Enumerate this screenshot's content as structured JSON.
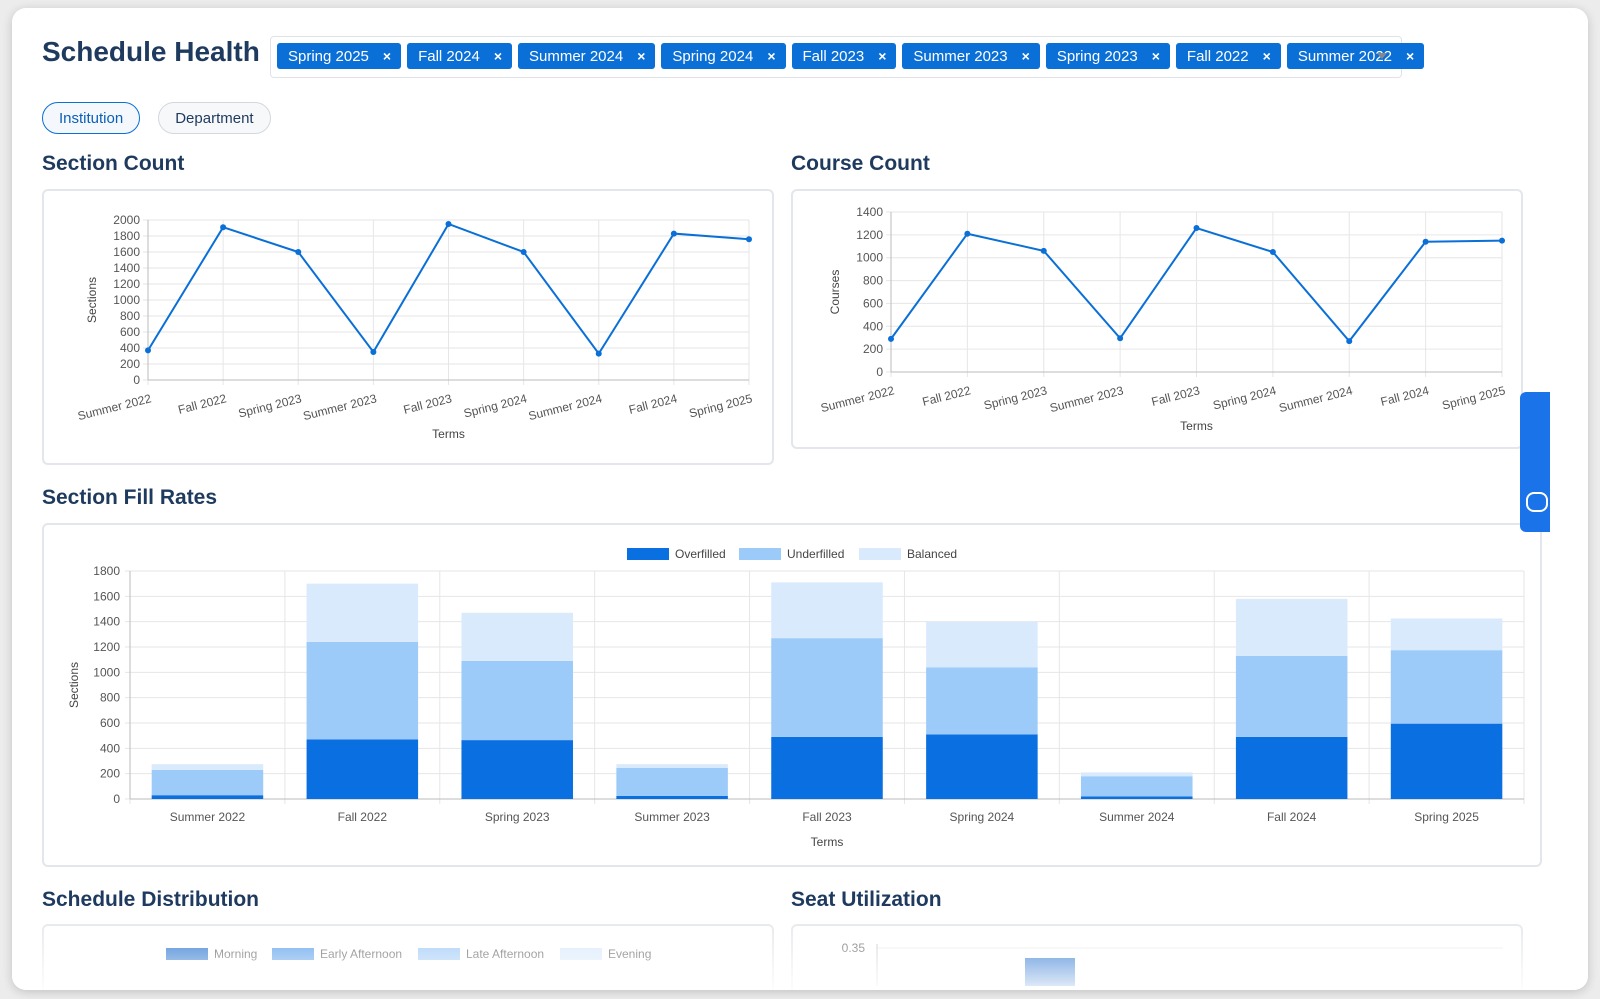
{
  "header": {
    "title": "Schedule Health",
    "terms": [
      "Spring 2025",
      "Fall 2024",
      "Summer 2024",
      "Spring 2024",
      "Fall 2023",
      "Summer 2023",
      "Spring 2023",
      "Fall 2022",
      "Summer 2022"
    ],
    "chip_remove": "×"
  },
  "scope": {
    "institution": "Institution",
    "department": "Department"
  },
  "sections": {
    "section_count": "Section Count",
    "course_count": "Course Count",
    "fill_rates": "Section Fill Rates",
    "schedule_distribution": "Schedule Distribution",
    "seat_utilization": "Seat Utilization"
  },
  "colors": {
    "primary": "#0a6fd6",
    "overfilled": "#0a6fe0",
    "underfilled": "#9ccbfa",
    "balanced": "#d9eafc",
    "text": "#1f3a5f"
  },
  "chart_data": [
    {
      "id": "section-count",
      "type": "line",
      "xlabel": "Terms",
      "ylabel": "Sections",
      "categories": [
        "Summer 2022",
        "Fall 2022",
        "Spring 2023",
        "Summer 2023",
        "Fall 2023",
        "Spring 2024",
        "Summer 2024",
        "Fall 2024",
        "Spring 2025"
      ],
      "values": [
        370,
        1910,
        1600,
        350,
        1950,
        1600,
        330,
        1830,
        1760
      ],
      "ylim": [
        0,
        2000
      ],
      "yticks": [
        0,
        200,
        400,
        600,
        800,
        1000,
        1200,
        1400,
        1600,
        1800,
        2000
      ]
    },
    {
      "id": "course-count",
      "type": "line",
      "xlabel": "Terms",
      "ylabel": "Courses",
      "categories": [
        "Summer 2022",
        "Fall 2022",
        "Spring 2023",
        "Summer 2023",
        "Fall 2023",
        "Spring 2024",
        "Summer 2024",
        "Fall 2024",
        "Spring 2025"
      ],
      "values": [
        290,
        1210,
        1060,
        295,
        1260,
        1050,
        270,
        1140,
        1150
      ],
      "ylim": [
        0,
        1400
      ],
      "yticks": [
        0,
        200,
        400,
        600,
        800,
        1000,
        1200,
        1400
      ]
    },
    {
      "id": "fill-rates",
      "type": "bar",
      "stacked": true,
      "xlabel": "Terms",
      "ylabel": "Sections",
      "categories": [
        "Summer 2022",
        "Fall 2022",
        "Spring 2023",
        "Summer 2023",
        "Fall 2023",
        "Spring 2024",
        "Summer 2024",
        "Fall 2024",
        "Spring 2025"
      ],
      "series": [
        {
          "name": "Overfilled",
          "values": [
            30,
            470,
            465,
            25,
            490,
            510,
            20,
            490,
            595
          ]
        },
        {
          "name": "Underfilled",
          "values": [
            200,
            770,
            625,
            220,
            780,
            530,
            160,
            640,
            580
          ]
        },
        {
          "name": "Balanced",
          "values": [
            45,
            460,
            380,
            30,
            440,
            360,
            30,
            450,
            250
          ]
        }
      ],
      "ylim": [
        0,
        1800
      ],
      "yticks": [
        0,
        200,
        400,
        600,
        800,
        1000,
        1200,
        1400,
        1600,
        1800
      ]
    },
    {
      "id": "schedule-distribution",
      "type": "bar",
      "legend": [
        "Morning",
        "Early Afternoon",
        "Late Afternoon",
        "Evening"
      ]
    },
    {
      "id": "seat-utilization",
      "type": "bar",
      "yticks": [
        0.35
      ]
    }
  ]
}
